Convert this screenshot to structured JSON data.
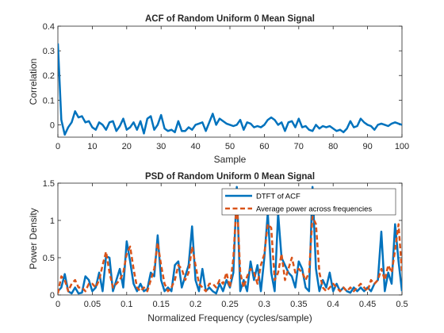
{
  "figure": {
    "background": "#ffffff",
    "axes_color": "#262626",
    "colors": {
      "acf": "#0072BD",
      "dtft": "#0072BD",
      "avg": "#D95319"
    }
  },
  "chart_data": [
    {
      "type": "line",
      "title": "ACF of Random Uniform 0 Mean Signal",
      "xlabel": "Sample",
      "ylabel": "Correlation",
      "xlim": [
        0,
        100
      ],
      "ylim": [
        -0.05,
        0.4
      ],
      "xticks": [
        0,
        10,
        20,
        30,
        40,
        50,
        60,
        70,
        80,
        90,
        100
      ],
      "xtick_labels": [
        "0",
        "10",
        "20",
        "30",
        "40",
        "50",
        "60",
        "70",
        "80",
        "90",
        "100"
      ],
      "yticks": [
        0,
        0.1,
        0.2,
        0.3,
        0.4
      ],
      "ytick_labels": [
        "0",
        "0.1",
        "0.2",
        "0.3",
        "0.4"
      ],
      "grid": false,
      "series": [
        {
          "color": "#0072BD",
          "x": [
            0,
            1,
            2,
            3,
            4,
            5,
            6,
            7,
            8,
            9,
            10,
            11,
            12,
            13,
            14,
            15,
            16,
            17,
            18,
            19,
            20,
            21,
            22,
            23,
            24,
            25,
            26,
            27,
            28,
            29,
            30,
            31,
            32,
            33,
            34,
            35,
            36,
            37,
            38,
            39,
            40,
            41,
            42,
            43,
            44,
            45,
            46,
            47,
            48,
            49,
            50,
            51,
            52,
            53,
            54,
            55,
            56,
            57,
            58,
            59,
            60,
            61,
            62,
            63,
            64,
            65,
            66,
            67,
            68,
            69,
            70,
            71,
            72,
            73,
            74,
            75,
            76,
            77,
            78,
            79,
            80,
            81,
            82,
            83,
            84,
            85,
            86,
            87,
            88,
            89,
            90,
            91,
            92,
            93,
            94,
            95,
            96,
            97,
            98,
            99,
            100
          ],
          "y": [
            0.33,
            0.02,
            -0.04,
            -0.01,
            0.01,
            0.055,
            0.03,
            0.035,
            0.01,
            0.015,
            -0.01,
            -0.02,
            0.01,
            0.0,
            -0.02,
            0.01,
            0.015,
            -0.025,
            -0.005,
            0.025,
            -0.02,
            -0.01,
            0.01,
            -0.02,
            0.015,
            -0.035,
            0.025,
            0.035,
            -0.02,
            0.0,
            0.04,
            -0.015,
            -0.025,
            -0.02,
            -0.03,
            0.015,
            -0.025,
            -0.025,
            -0.01,
            -0.02,
            0.0,
            0.005,
            0.01,
            -0.025,
            0.01,
            0.045,
            0.0,
            0.025,
            0.015,
            0.005,
            0.0,
            -0.005,
            0.0,
            0.02,
            -0.02,
            0.01,
            0.005,
            -0.01,
            -0.005,
            -0.01,
            0.0,
            0.02,
            0.03,
            0.02,
            0.0,
            0.01,
            -0.025,
            0.01,
            0.015,
            -0.01,
            0.025,
            -0.01,
            -0.005,
            -0.02,
            -0.025,
            0.0,
            -0.015,
            -0.005,
            -0.01,
            -0.005,
            -0.015,
            -0.025,
            -0.02,
            -0.03,
            -0.015,
            0.015,
            -0.01,
            -0.005,
            0.025,
            0.01,
            0.0,
            -0.005,
            -0.02,
            0.0,
            0.005,
            0.0,
            -0.005,
            0.005,
            0.01,
            0.005,
            0.0
          ]
        }
      ]
    },
    {
      "type": "line",
      "title": "PSD of Random Uniform 0 Mean Signal",
      "xlabel": "Normalized Frequency (cycles/sample)",
      "ylabel": "Power Density",
      "xlim": [
        0,
        0.5
      ],
      "ylim": [
        0,
        1.5
      ],
      "xticks": [
        0,
        0.05,
        0.1,
        0.15,
        0.2,
        0.25,
        0.3,
        0.35,
        0.4,
        0.45,
        0.5
      ],
      "xtick_labels": [
        "0",
        "0.05",
        "0.1",
        "0.15",
        "0.2",
        "0.25",
        "0.3",
        "0.35",
        "0.4",
        "0.45",
        "0.5"
      ],
      "yticks": [
        0,
        0.5,
        1,
        1.5
      ],
      "ytick_labels": [
        "0",
        "0.5",
        "1",
        "1.5"
      ],
      "grid": false,
      "legend": {
        "placement": "top-right",
        "entries": [
          "DTFT of ACF",
          "Average power across frequencies"
        ]
      },
      "series": [
        {
          "name": "DTFT of ACF",
          "style": "solid",
          "color": "#0072BD",
          "x": [
            0,
            0.005,
            0.01,
            0.015,
            0.02,
            0.025,
            0.03,
            0.035,
            0.04,
            0.045,
            0.05,
            0.055,
            0.06,
            0.065,
            0.07,
            0.075,
            0.08,
            0.085,
            0.09,
            0.095,
            0.1,
            0.105,
            0.11,
            0.115,
            0.12,
            0.125,
            0.13,
            0.135,
            0.14,
            0.145,
            0.15,
            0.155,
            0.16,
            0.165,
            0.17,
            0.175,
            0.18,
            0.185,
            0.19,
            0.195,
            0.2,
            0.205,
            0.21,
            0.215,
            0.22,
            0.225,
            0.23,
            0.235,
            0.24,
            0.245,
            0.25,
            0.255,
            0.26,
            0.265,
            0.27,
            0.275,
            0.28,
            0.285,
            0.29,
            0.295,
            0.3,
            0.305,
            0.31,
            0.315,
            0.32,
            0.325,
            0.33,
            0.335,
            0.34,
            0.345,
            0.35,
            0.355,
            0.36,
            0.365,
            0.37,
            0.375,
            0.38,
            0.385,
            0.39,
            0.395,
            0.4,
            0.405,
            0.41,
            0.415,
            0.42,
            0.425,
            0.43,
            0.435,
            0.44,
            0.445,
            0.45,
            0.455,
            0.46,
            0.465,
            0.47,
            0.475,
            0.48,
            0.485,
            0.49,
            0.495,
            0.5
          ],
          "y": [
            0.05,
            0.1,
            0.28,
            0.05,
            0.02,
            0.1,
            0.02,
            0.03,
            0.25,
            0.2,
            0.05,
            0.1,
            0.3,
            0.05,
            0.52,
            0.5,
            0.05,
            0.2,
            0.35,
            0.1,
            0.72,
            0.45,
            0.15,
            0.05,
            0.15,
            0.05,
            0.08,
            0.3,
            0.25,
            0.8,
            0.2,
            0.05,
            0.1,
            0.05,
            0.4,
            0.45,
            0.1,
            0.25,
            0.4,
            0.92,
            0.2,
            0.05,
            0.35,
            0.05,
            0.1,
            0.05,
            0.02,
            0.15,
            0.05,
            0.2,
            0.1,
            0.3,
            1.45,
            0.05,
            0.2,
            0.05,
            0.45,
            0.2,
            0.4,
            0.05,
            0.5,
            1.1,
            0.3,
            0.05,
            1.1,
            0.5,
            0.4,
            0.3,
            0.25,
            0.1,
            0.45,
            0.35,
            0.1,
            0.05,
            1.45,
            0.35,
            0.05,
            0.2,
            0.1,
            0.3,
            0.05,
            0.15,
            0.05,
            0.1,
            0.05,
            0.03,
            0.1,
            0.05,
            0.1,
            0.05,
            0.1,
            0.05,
            0.15,
            0.2,
            0.85,
            0.05,
            0.3,
            0.15,
            0.95,
            0.45,
            0.05
          ]
        },
        {
          "name": "Average power across frequencies",
          "style": "dashed",
          "color": "#D95319",
          "x": [
            0,
            0.005,
            0.01,
            0.015,
            0.02,
            0.025,
            0.03,
            0.035,
            0.04,
            0.045,
            0.05,
            0.055,
            0.06,
            0.065,
            0.07,
            0.075,
            0.08,
            0.085,
            0.09,
            0.095,
            0.1,
            0.105,
            0.11,
            0.115,
            0.12,
            0.125,
            0.13,
            0.135,
            0.14,
            0.145,
            0.15,
            0.155,
            0.16,
            0.165,
            0.17,
            0.175,
            0.18,
            0.185,
            0.19,
            0.195,
            0.2,
            0.205,
            0.21,
            0.215,
            0.22,
            0.225,
            0.23,
            0.235,
            0.24,
            0.245,
            0.25,
            0.255,
            0.26,
            0.265,
            0.27,
            0.275,
            0.28,
            0.285,
            0.29,
            0.295,
            0.3,
            0.305,
            0.31,
            0.315,
            0.32,
            0.325,
            0.33,
            0.335,
            0.34,
            0.345,
            0.35,
            0.355,
            0.36,
            0.365,
            0.37,
            0.375,
            0.38,
            0.385,
            0.39,
            0.395,
            0.4,
            0.405,
            0.41,
            0.415,
            0.42,
            0.425,
            0.43,
            0.435,
            0.44,
            0.445,
            0.45,
            0.455,
            0.46,
            0.465,
            0.47,
            0.475,
            0.48,
            0.485,
            0.49,
            0.495,
            0.5
          ],
          "y": [
            0.02,
            0.25,
            0.2,
            0.05,
            0.15,
            0.2,
            0.1,
            0.1,
            0.05,
            0.15,
            0.15,
            0.1,
            0.2,
            0.4,
            0.58,
            0.3,
            0.1,
            0.15,
            0.2,
            0.3,
            0.55,
            0.65,
            0.35,
            0.1,
            0.05,
            0.1,
            0.05,
            0.2,
            0.35,
            0.7,
            0.4,
            0.15,
            0.05,
            0.1,
            0.2,
            0.4,
            0.35,
            0.2,
            0.3,
            0.65,
            0.4,
            0.15,
            0.1,
            0.05,
            0.15,
            0.15,
            0.1,
            0.2,
            0.15,
            0.3,
            0.1,
            0.5,
            1.3,
            0.3,
            0.1,
            0.25,
            0.35,
            0.3,
            0.15,
            0.4,
            0.55,
            0.95,
            0.9,
            0.2,
            0.3,
            0.55,
            0.2,
            0.35,
            0.5,
            0.3,
            0.35,
            0.3,
            0.2,
            0.3,
            1.05,
            0.95,
            0.3,
            0.1,
            0.05,
            0.1,
            0.15,
            0.1,
            0.05,
            0.1,
            0.05,
            0.1,
            0.05,
            0.1,
            0.15,
            0.1,
            0.05,
            0.2,
            0.15,
            0.2,
            0.35,
            0.2,
            0.4,
            0.3,
            0.6,
            0.95,
            0.3
          ]
        }
      ]
    }
  ]
}
